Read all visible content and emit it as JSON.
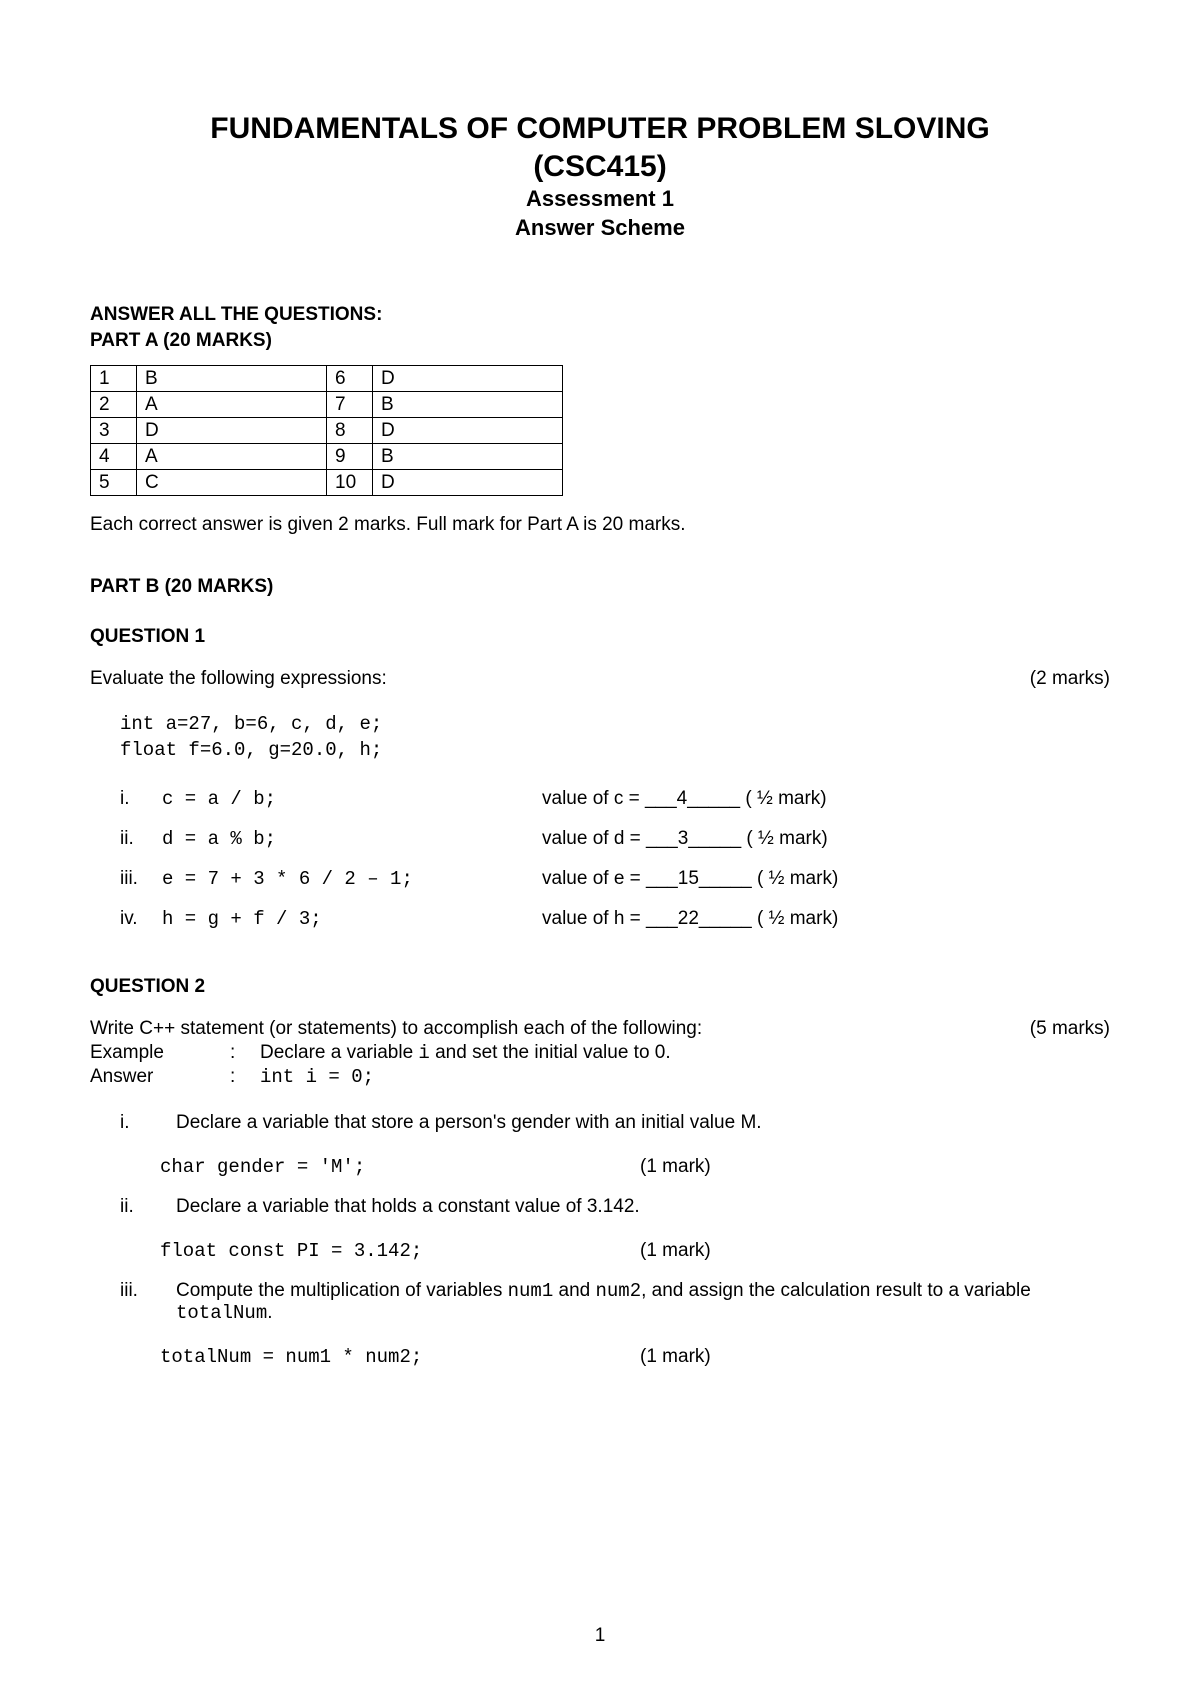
{
  "header": {
    "title_line1": "FUNDAMENTALS OF COMPUTER PROBLEM SLOVING",
    "title_line2": "(CSC415)",
    "subtitle1": "Assessment 1",
    "subtitle2": "Answer Scheme"
  },
  "partA": {
    "instruction1": "ANSWER ALL THE QUESTIONS:",
    "instruction2": "PART A (20 MARKS)",
    "rows": [
      {
        "n1": "1",
        "a1": "B",
        "n2": "6",
        "a2": "D"
      },
      {
        "n1": "2",
        "a1": "A",
        "n2": "7",
        "a2": "B"
      },
      {
        "n1": "3",
        "a1": "D",
        "n2": "8",
        "a2": "D"
      },
      {
        "n1": "4",
        "a1": "A",
        "n2": "9",
        "a2": "B"
      },
      {
        "n1": "5",
        "a1": "C",
        "n2": "10",
        "a2": "D"
      }
    ],
    "note": "Each correct answer is given 2 marks. Full mark for Part A is 20 marks."
  },
  "partB": {
    "heading": "PART B (20 MARKS)",
    "q1": {
      "heading": "QUESTION 1",
      "prompt": "Evaluate the following expressions:",
      "marks": "(2 marks)",
      "decl1": "int a=27, b=6, c, d, e;",
      "decl2": "float f=6.0, g=20.0, h;",
      "items": [
        {
          "roman": "i.",
          "expr": "c = a / b;",
          "ans": "value of c = ___4_____ ( ½ mark)"
        },
        {
          "roman": "ii.",
          "expr": "d = a % b;",
          "ans": "value of d = ___3_____ ( ½ mark)"
        },
        {
          "roman": "iii.",
          "expr": "e = 7 + 3 * 6 / 2 – 1;",
          "ans": "value of e = ___15_____ ( ½ mark)"
        },
        {
          "roman": "iv.",
          "expr": "h = g + f / 3;",
          "ans": "value of h  =  ___22_____ ( ½ mark)"
        }
      ]
    },
    "q2": {
      "heading": "QUESTION 2",
      "intro": "Write C++ statement (or statements) to accomplish each of the following:",
      "intro_marks": "(5 marks)",
      "example_label": "Example",
      "example_text_pre": "Declare a variable ",
      "example_text_code": "i",
      "example_text_post": " and set the initial value to 0.",
      "answer_label": "Answer",
      "answer_code": "int i = 0;",
      "items": [
        {
          "roman": "i.",
          "text": "Declare a variable that store a person's gender with an initial value M.",
          "code": "char gender = 'M';",
          "mark": "(1 mark)"
        },
        {
          "roman": "ii.",
          "text": "Declare a variable that holds a constant value of 3.142.",
          "code": "float const PI = 3.142;",
          "mark": "(1 mark)"
        },
        {
          "roman": "iii.",
          "text_pre": "Compute the multiplication of variables ",
          "code1": "num1",
          "text_mid1": " and ",
          "code2": "num2",
          "text_mid2": ", and assign the calculation result to a variable ",
          "code3": "totalNum",
          "text_post": ".",
          "code": "totalNum = num1 * num2;",
          "mark": "(1 mark)"
        }
      ]
    }
  },
  "pageNumber": "1"
}
